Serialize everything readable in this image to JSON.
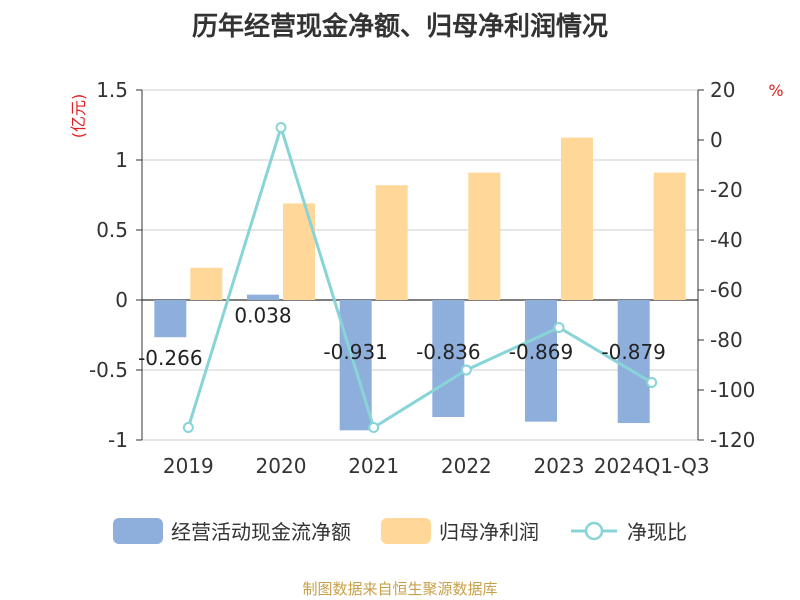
{
  "chart_data": {
    "type": "bar",
    "title": "历年经营现金净额、归母净利润情况",
    "categories": [
      "2019",
      "2020",
      "2021",
      "2022",
      "2023",
      "2024Q1-Q3"
    ],
    "left_unit": "(亿元)",
    "right_unit": "%",
    "ylim_left": [
      -1,
      1.5
    ],
    "ylim_right": [
      -120,
      20
    ],
    "left_ticks": [
      "1.5",
      "1",
      "0.5",
      "0",
      "-0.5",
      "-1"
    ],
    "right_ticks": [
      "20",
      "0",
      "-20",
      "-40",
      "-60",
      "-80",
      "-100",
      "-120"
    ],
    "grid": true,
    "legend_position": "bottom",
    "series": [
      {
        "name": "经营活动现金流净额",
        "type": "bar",
        "axis": "left",
        "color": "#8eaedc",
        "values": [
          -0.266,
          0.038,
          -0.931,
          -0.836,
          -0.869,
          -0.879
        ],
        "labels": [
          "-0.266",
          "0.038",
          "-0.931",
          "-0.836",
          "-0.869",
          "-0.879"
        ]
      },
      {
        "name": "归母净利润",
        "type": "bar",
        "axis": "left",
        "color": "#ffd899",
        "values": [
          0.23,
          0.69,
          0.82,
          0.91,
          1.16,
          0.91
        ]
      },
      {
        "name": "净现比",
        "type": "line",
        "axis": "right",
        "color": "#88d4d6",
        "values": [
          -115,
          5,
          -115,
          -92,
          -75,
          -97
        ]
      }
    ]
  },
  "source": "制图数据来自恒生聚源数据库"
}
